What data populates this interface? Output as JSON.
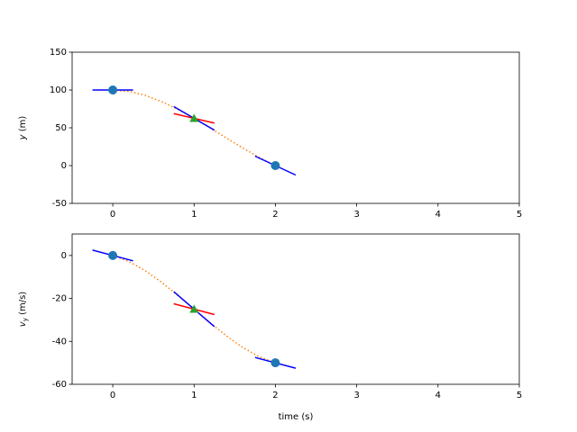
{
  "chart_data": [
    {
      "type": "line",
      "ylabel": [
        {
          "text": "y",
          "style": "italic"
        },
        {
          "text": " (m)"
        }
      ],
      "xlim": [
        -0.5,
        5
      ],
      "xticks": [
        0,
        1,
        2,
        3,
        4,
        5
      ],
      "ylim": [
        -50,
        150
      ],
      "yticks": [
        -50,
        0,
        50,
        100,
        150
      ],
      "series": [
        {
          "color": "#ff7f0e",
          "style": "dotted",
          "x": [
            0,
            0.2,
            0.4,
            0.6,
            0.8,
            1,
            1.2,
            1.4,
            1.6,
            1.8,
            2
          ],
          "values": [
            100,
            98.1,
            92.8,
            84.7,
            74.4,
            62.5,
            49.6,
            36.3,
            23.2,
            10.9,
            0
          ]
        },
        {
          "color": "#0000ff",
          "style": "solid",
          "x": [
            -0.25,
            0.25
          ],
          "values": [
            100,
            100
          ]
        },
        {
          "color": "#0000ff",
          "style": "solid",
          "x": [
            0.75,
            1.25
          ],
          "values": [
            78.125,
            46.875
          ]
        },
        {
          "color": "#0000ff",
          "style": "solid",
          "x": [
            1.75,
            2.25
          ],
          "values": [
            12.5,
            -12.5
          ]
        },
        {
          "color": "#ff0000",
          "style": "solid",
          "x": [
            0.75,
            1.25
          ],
          "values": [
            68.75,
            56.25
          ]
        },
        {
          "color": "#1f77b4",
          "style": "circle",
          "x": [
            0,
            2
          ],
          "values": [
            100,
            0
          ]
        },
        {
          "color": "#2ca02c",
          "style": "triangle",
          "x": [
            1
          ],
          "values": [
            62.5
          ]
        }
      ]
    },
    {
      "type": "line",
      "xlabel": "time (s)",
      "ylabel": [
        {
          "text": "v",
          "style": "italic"
        },
        {
          "text": "y",
          "style": "sub"
        },
        {
          "text": " (m/s)"
        }
      ],
      "xlim": [
        -0.5,
        5
      ],
      "xticks": [
        0,
        1,
        2,
        3,
        4,
        5
      ],
      "ylim": [
        -60,
        10
      ],
      "yticks": [
        -60,
        -40,
        -20,
        0
      ],
      "series": [
        {
          "color": "#ff7f0e",
          "style": "dotted",
          "x": [
            0,
            0.2,
            0.4,
            0.6,
            0.8,
            1,
            1.2,
            1.4,
            1.6,
            1.8,
            2
          ],
          "values": [
            0,
            -2.84,
            -7.12,
            -12.48,
            -18.56,
            -25,
            -31.44,
            -37.52,
            -42.88,
            -47.16,
            -50
          ]
        },
        {
          "color": "#0000ff",
          "style": "solid",
          "x": [
            -0.25,
            0.25
          ],
          "values": [
            2.5,
            -2.5
          ]
        },
        {
          "color": "#0000ff",
          "style": "solid",
          "x": [
            0.75,
            1.25
          ],
          "values": [
            -16.875,
            -33.125
          ]
        },
        {
          "color": "#0000ff",
          "style": "solid",
          "x": [
            1.75,
            2.25
          ],
          "values": [
            -47.5,
            -52.5
          ]
        },
        {
          "color": "#ff0000",
          "style": "solid",
          "x": [
            0.75,
            1.25
          ],
          "values": [
            -22.5,
            -27.5
          ]
        },
        {
          "color": "#1f77b4",
          "style": "circle",
          "x": [
            0,
            2
          ],
          "values": [
            0,
            -50
          ]
        },
        {
          "color": "#2ca02c",
          "style": "triangle",
          "x": [
            1
          ],
          "values": [
            -25
          ]
        }
      ]
    }
  ]
}
